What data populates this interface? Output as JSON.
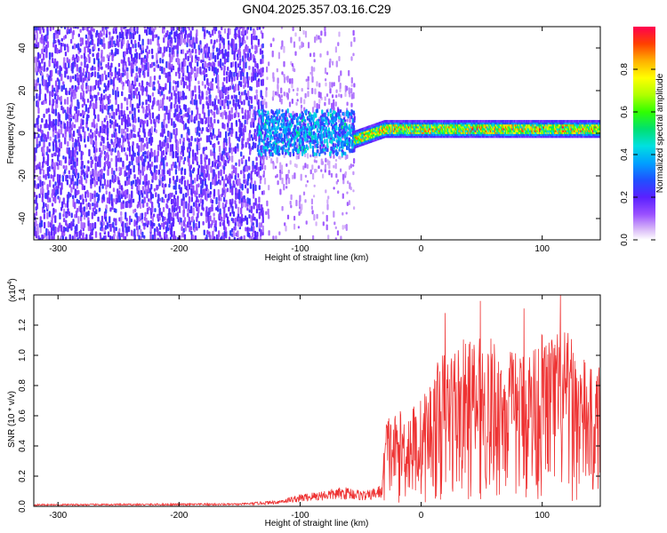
{
  "title": "GN04.2025.357.03.16.C29",
  "chart_data": [
    {
      "type": "heatmap",
      "title": "GN04.2025.357.03.16.C29",
      "xlabel": "Height of straight line (km)",
      "ylabel": "Frequency (Hz)",
      "xlim": [
        -320,
        148
      ],
      "ylim": [
        -50,
        50
      ],
      "xticks": [
        -300,
        -200,
        -100,
        0,
        100
      ],
      "yticks": [
        -40,
        -20,
        0,
        20,
        40
      ],
      "colorbar": {
        "label": "Normalized spectral amplitude",
        "range": [
          0.0,
          1.0
        ],
        "ticks": [
          0.0,
          0.2,
          0.4,
          0.6,
          0.8
        ],
        "tick_labels": [
          "0.0",
          "0.2",
          "0.4",
          "0.6",
          "0.8"
        ],
        "colors": [
          "#ffffff",
          "#c9a6f7",
          "#7f00ff",
          "#3c32ff",
          "#0096ff",
          "#00e0e0",
          "#00e060",
          "#40ff00",
          "#c8ff00",
          "#ffff00",
          "#ffb000",
          "#ff4000",
          "#ff0050"
        ]
      },
      "regions": [
        {
          "name": "broadband noise",
          "x_range": [
            -320,
            -130
          ],
          "amplitude": [
            0.08,
            0.25
          ]
        },
        {
          "name": "sparse noise",
          "x_range": [
            -130,
            -55
          ],
          "amplitude": [
            0.05,
            0.12
          ]
        },
        {
          "name": "noise burst",
          "x_range": [
            -135,
            -55
          ],
          "freq_range": [
            -10,
            10
          ],
          "amplitude": [
            0.2,
            0.45
          ]
        },
        {
          "name": "signal line",
          "x_range": [
            -55,
            148
          ],
          "freq_center": [
            -3,
            2
          ],
          "amplitude": [
            0.4,
            1.0
          ]
        }
      ]
    },
    {
      "type": "line",
      "xlabel": "Height of straight line (km)",
      "ylabel": "SNR (10 * v/v)",
      "y_multiplier": "(x10",
      "y_multiplier_exp": "4",
      "xlim": [
        -320,
        148
      ],
      "ylim": [
        0,
        1.4
      ],
      "xticks": [
        -300,
        -200,
        -100,
        0,
        100
      ],
      "yticks": [
        0.0,
        0.2,
        0.4,
        0.6,
        0.8,
        1.0,
        1.2,
        1.4
      ],
      "series": [
        {
          "name": "SNR",
          "color": "#ee3333",
          "envelope": {
            "x": [
              -320,
              -150,
              -120,
              -100,
              -80,
              -60,
              -45,
              -32,
              -30,
              -20,
              0,
              20,
              40,
              60,
              80,
              100,
              120,
              140,
              148
            ],
            "y": [
              0.015,
              0.02,
              0.04,
              0.08,
              0.11,
              0.13,
              0.1,
              0.15,
              0.6,
              0.6,
              0.7,
              1.05,
              1.1,
              1.1,
              1.0,
              1.15,
              1.15,
              0.9,
              0.85
            ]
          },
          "peaks": [
            {
              "x": 20,
              "y": 1.28
            },
            {
              "x": 49,
              "y": 1.36
            },
            {
              "x": 85,
              "y": 1.31
            },
            {
              "x": 115,
              "y": 1.4
            },
            {
              "x": 147,
              "y": 0.92
            }
          ]
        }
      ]
    }
  ]
}
